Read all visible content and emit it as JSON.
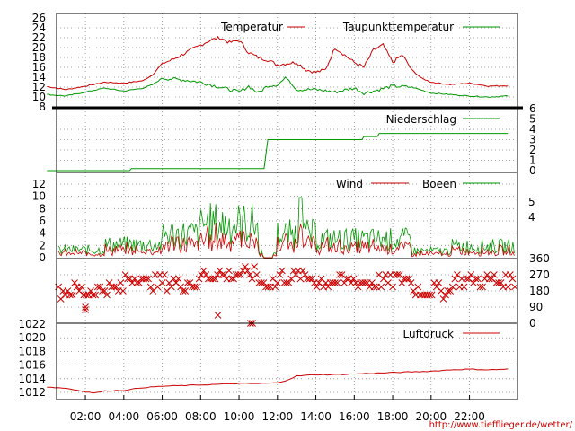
{
  "source_url": "http://www.tiefflieger.de/wetter/",
  "colors": {
    "red": "#cc0000",
    "green": "#009900",
    "grid": "#888888",
    "url": "#cc0000"
  },
  "chart_data": [
    {
      "type": "line",
      "name": "temperature",
      "ylim": [
        8,
        26
      ],
      "yticks": [
        8,
        10,
        12,
        14,
        16,
        18,
        20,
        22,
        24,
        26
      ],
      "x_unit": "hours",
      "series": [
        {
          "name": "Temperatur",
          "color": "#cc0000",
          "x": [
            0,
            1,
            2,
            3,
            4,
            5,
            5.5,
            6,
            6.5,
            7,
            7.5,
            8,
            8.5,
            9,
            9.5,
            10,
            10.5,
            11,
            11.5,
            12,
            12.5,
            13,
            13.5,
            14,
            14.5,
            15,
            15.5,
            16,
            16.5,
            17,
            17.5,
            18,
            18.5,
            19,
            19.5,
            20,
            21,
            22,
            23,
            24
          ],
          "y": [
            12.1,
            11.5,
            12.2,
            13.0,
            12.8,
            13.3,
            14.5,
            16.8,
            17.5,
            18.5,
            19.5,
            20.5,
            21.5,
            22.0,
            21.0,
            21.5,
            19.0,
            18.0,
            17.5,
            16.5,
            16.8,
            17.0,
            15.5,
            15.0,
            15.5,
            20.0,
            18.5,
            17.0,
            16.0,
            19.5,
            20.5,
            17.0,
            18.5,
            15.5,
            13.8,
            13.0,
            12.5,
            12.8,
            12.2,
            12.3
          ]
        },
        {
          "name": "Taupunkttemperatur",
          "color": "#009900",
          "x": [
            0,
            1,
            2,
            3,
            4,
            5,
            5.5,
            6,
            7,
            8,
            9,
            10,
            10.5,
            11,
            11.5,
            12,
            12.5,
            13,
            14,
            15,
            16,
            16.5,
            17,
            18,
            19,
            20,
            21,
            22,
            23,
            24
          ],
          "y": [
            10.5,
            10.2,
            11.0,
            11.8,
            11.2,
            11.8,
            12.5,
            13.8,
            13.5,
            13.0,
            12.0,
            11.0,
            12.2,
            10.8,
            12.3,
            12.5,
            14.0,
            11.5,
            11.5,
            11.0,
            11.8,
            10.8,
            11.2,
            12.2,
            12.0,
            10.8,
            10.5,
            10.2,
            10.0,
            10.2
          ]
        }
      ]
    },
    {
      "type": "line",
      "name": "precipitation",
      "ylim": [
        0,
        6
      ],
      "yticks": [
        0,
        1,
        2,
        3,
        4,
        5,
        6
      ],
      "series": [
        {
          "name": "Niederschlag",
          "color": "#009900",
          "x": [
            0,
            4.3,
            4.4,
            11.3,
            11.5,
            16.4,
            16.5,
            17.2,
            17.3,
            24
          ],
          "y": [
            0,
            0,
            0.2,
            0.2,
            3.0,
            3.0,
            3.3,
            3.3,
            3.6,
            3.6
          ]
        }
      ]
    },
    {
      "type": "line",
      "name": "wind",
      "ylim": [
        0,
        13
      ],
      "yticks_left": [
        0,
        2,
        4,
        6,
        8,
        10,
        12
      ],
      "yticks_right": [
        "4",
        "5"
      ],
      "series": [
        {
          "name": "Wind",
          "color": "#cc0000"
        },
        {
          "name": "Boeen",
          "color": "#009900"
        }
      ]
    },
    {
      "type": "scatter",
      "name": "wind-direction",
      "ylim": [
        0,
        360
      ],
      "yticks": [
        0,
        90,
        180,
        270,
        360
      ],
      "marker": "x"
    },
    {
      "type": "line",
      "name": "pressure",
      "ylim": [
        1011,
        1022
      ],
      "yticks": [
        1012,
        1014,
        1016,
        1018,
        1020,
        1022
      ],
      "series": [
        {
          "name": "Luftdruck",
          "color": "#cc0000",
          "x": [
            0,
            1,
            2,
            2.5,
            3,
            4,
            5,
            6,
            7,
            8,
            9,
            10,
            11,
            12,
            12.5,
            13,
            14,
            15,
            16,
            17,
            18,
            19,
            20,
            21,
            22,
            23,
            24
          ],
          "y": [
            1012.8,
            1012.6,
            1012.1,
            1011.9,
            1012.2,
            1012.3,
            1012.7,
            1012.9,
            1013.0,
            1013.1,
            1013.2,
            1013.3,
            1013.3,
            1013.4,
            1013.8,
            1014.4,
            1014.6,
            1014.6,
            1014.7,
            1014.8,
            1014.9,
            1015.0,
            1015.1,
            1015.3,
            1015.4,
            1015.3,
            1015.4
          ]
        }
      ]
    }
  ],
  "x_axis": {
    "ticks": [
      2,
      4,
      6,
      8,
      10,
      12,
      14,
      16,
      18,
      20,
      22
    ],
    "labels": [
      "02:00",
      "04:00",
      "06:00",
      "08:00",
      "10:00",
      "12:00",
      "14:00",
      "16:00",
      "18:00",
      "20:00",
      "22:00"
    ]
  }
}
